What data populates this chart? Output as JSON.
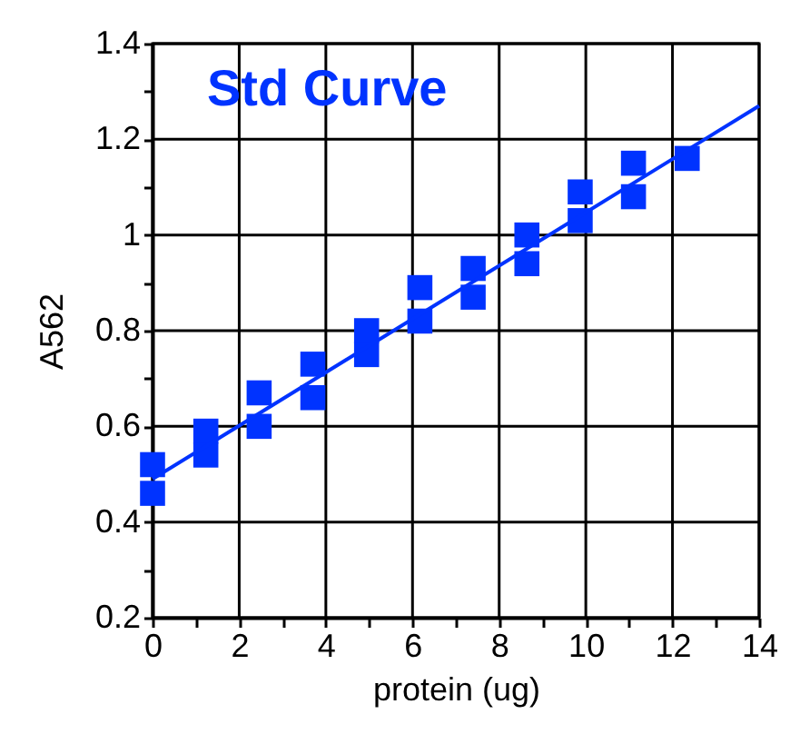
{
  "chart_data": {
    "type": "scatter",
    "title": "Std Curve",
    "xlabel": "protein (ug)",
    "ylabel": "A562",
    "x": [
      0,
      0,
      1.23,
      1.23,
      2.46,
      2.46,
      3.7,
      3.7,
      4.94,
      4.94,
      6.17,
      6.17,
      7.4,
      7.4,
      8.64,
      8.64,
      9.87,
      9.87,
      11.1,
      11.1,
      12.34
    ],
    "series": [
      {
        "color": "#0033ff",
        "marker": "square",
        "values": [
          0.52,
          0.46,
          0.59,
          0.54,
          0.67,
          0.6,
          0.73,
          0.66,
          0.8,
          0.75,
          0.89,
          0.82,
          0.93,
          0.87,
          1.0,
          0.94,
          1.09,
          1.03,
          1.15,
          1.08,
          1.16
        ]
      },
      {
        "type": "line",
        "color": "#0033ff",
        "line_style": "solid",
        "x": [
          0,
          14
        ],
        "values": [
          0.49,
          1.27
        ]
      }
    ],
    "xlim": [
      0,
      14
    ],
    "ylim": [
      0.2,
      1.4
    ],
    "xticks": [
      0,
      {
        "value": 1,
        "label": null
      },
      2,
      {
        "value": 3,
        "label": null
      },
      4,
      {
        "value": 5,
        "label": null
      },
      6,
      {
        "value": 7,
        "label": null
      },
      8,
      {
        "value": 9,
        "label": null
      },
      10,
      {
        "value": 11,
        "label": null
      },
      12,
      {
        "value": 13,
        "label": null
      },
      14
    ],
    "yticks": [
      0.2,
      {
        "value": 0.3,
        "label": null
      },
      0.4,
      {
        "value": 0.5,
        "label": null
      },
      0.6,
      {
        "value": 0.7,
        "label": null
      },
      0.8,
      {
        "value": 0.9,
        "label": null
      },
      1,
      {
        "value": 1.1,
        "label": null
      },
      1.2,
      {
        "value": 1.3,
        "label": null
      },
      1.4
    ],
    "grid": true
  }
}
